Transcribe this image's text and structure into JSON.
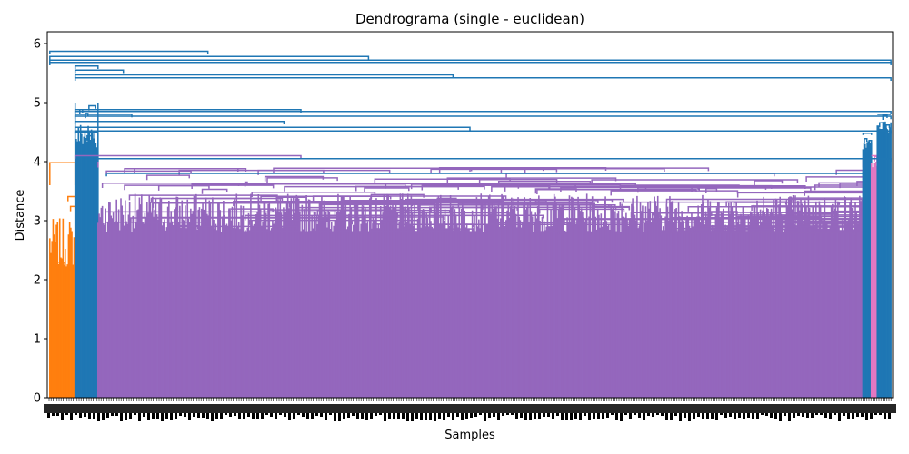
{
  "chart_data": {
    "type": "dendrogram",
    "title": "Dendrograma (single - euclidean)",
    "xlabel": "Samples",
    "ylabel": "Distance",
    "ylim": [
      0,
      6.2
    ],
    "yticks": [
      0,
      1,
      2,
      3,
      4,
      5,
      6
    ],
    "grid": false,
    "legend": "none",
    "clusters": [
      {
        "color": "#ff7f0e",
        "leaf_span": [
          0.003,
          0.033
        ],
        "merge_distance": 3.98,
        "inner_min": 2.2,
        "inner_max": 3.6
      },
      {
        "color": "#1f77b4",
        "leaf_span": [
          0.033,
          0.06
        ],
        "merge_distance": 4.5,
        "inner_min": 4.2,
        "inner_max": 5.0
      },
      {
        "color": "#9467bd",
        "leaf_span": [
          0.06,
          0.965
        ],
        "merge_distance": 4.05,
        "inner_min": 2.8,
        "inner_max": 3.9
      },
      {
        "color": "#1f77b4",
        "leaf_span": [
          0.965,
          0.975
        ],
        "merge_distance": 4.48,
        "inner_min": 4.2,
        "inner_max": 4.45
      },
      {
        "color": "#e377c2",
        "leaf_span": [
          0.975,
          0.982
        ],
        "merge_distance": 4.1,
        "inner_min": 3.9,
        "inner_max": 4.1
      },
      {
        "color": "#1f77b4",
        "leaf_span": [
          0.982,
          0.998
        ],
        "merge_distance": 4.8,
        "inner_min": 4.5,
        "inner_max": 4.8
      }
    ],
    "top_merges": [
      {
        "left": 0.003,
        "right": 0.19,
        "distance": 5.87
      },
      {
        "left": 0.003,
        "right": 0.38,
        "distance": 5.78
      },
      {
        "left": 0.003,
        "right": 0.998,
        "distance": 5.72
      },
      {
        "left": 0.003,
        "right": 0.998,
        "distance": 5.68
      },
      {
        "left": 0.033,
        "right": 0.06,
        "distance": 5.62
      },
      {
        "left": 0.033,
        "right": 0.09,
        "distance": 5.55
      },
      {
        "left": 0.033,
        "right": 0.48,
        "distance": 5.47
      },
      {
        "left": 0.033,
        "right": 0.998,
        "distance": 5.42
      },
      {
        "left": 0.033,
        "right": 0.3,
        "distance": 4.88
      },
      {
        "left": 0.033,
        "right": 0.998,
        "distance": 4.85
      },
      {
        "left": 0.033,
        "right": 0.1,
        "distance": 4.8
      },
      {
        "left": 0.033,
        "right": 0.998,
        "distance": 4.77
      },
      {
        "left": 0.033,
        "right": 0.28,
        "distance": 4.68
      },
      {
        "left": 0.033,
        "right": 0.5,
        "distance": 4.58
      },
      {
        "left": 0.033,
        "right": 0.998,
        "distance": 4.52
      },
      {
        "left": 0.033,
        "right": 0.3,
        "distance": 4.1
      },
      {
        "left": 0.06,
        "right": 0.998,
        "distance": 4.05
      },
      {
        "left": 0.07,
        "right": 0.965,
        "distance": 3.8
      },
      {
        "left": 0.5,
        "right": 0.73,
        "distance": 3.88
      },
      {
        "left": 0.07,
        "right": 0.17,
        "distance": 3.84
      }
    ]
  }
}
